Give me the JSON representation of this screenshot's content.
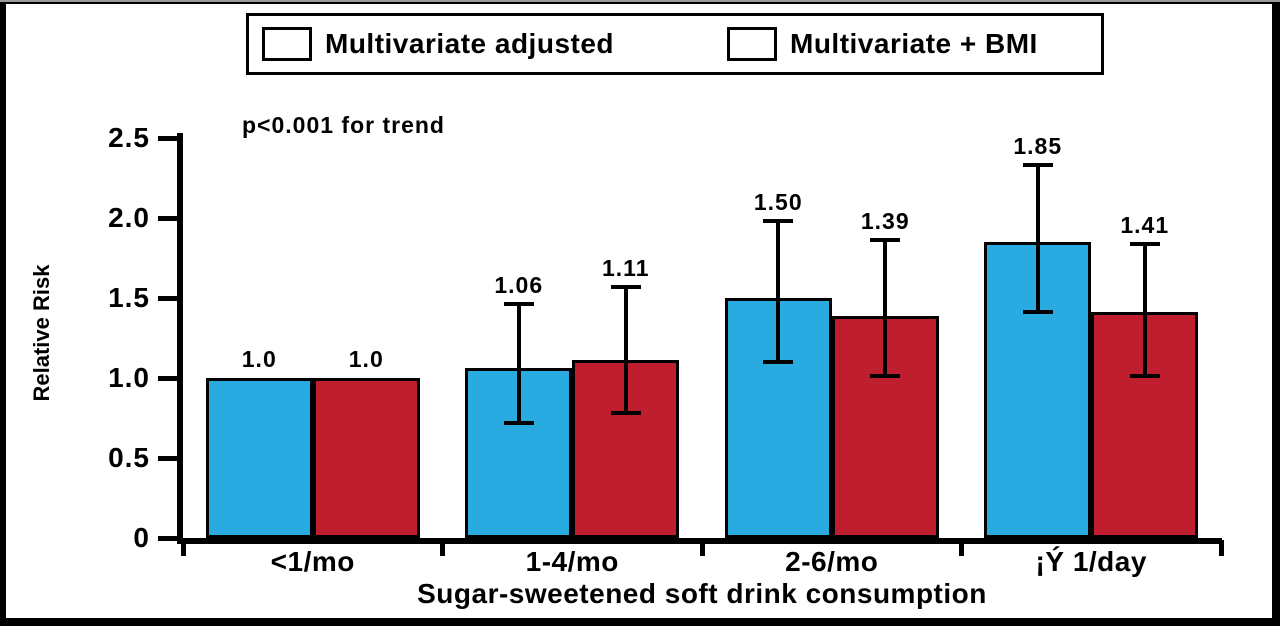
{
  "chart_data": {
    "type": "bar",
    "title": "",
    "xlabel": "Sugar-sweetened soft drink consumption",
    "ylabel": "Relative Risk",
    "annotation": "p<0.001 for trend",
    "categories": [
      "<1/mo",
      "1-4/mo",
      "2-6/mo",
      "¡Ý 1/day"
    ],
    "ylim": [
      0,
      2.5
    ],
    "yticks": [
      0,
      0.5,
      1.0,
      1.5,
      2.0,
      2.5
    ],
    "ytick_labels": [
      "0",
      "0.5",
      "1.0",
      "1.5",
      "2.0",
      "2.5"
    ],
    "grid": false,
    "legend_position": "top",
    "series": [
      {
        "name": "Multivariate adjusted",
        "color": "#29ABE2",
        "values": [
          1.0,
          1.06,
          1.5,
          1.85
        ],
        "labels": [
          "1.0",
          "1.06",
          "1.50",
          "1.85"
        ],
        "error_low": [
          null,
          0.72,
          1.1,
          1.41
        ],
        "error_high": [
          null,
          1.46,
          1.98,
          2.33
        ]
      },
      {
        "name": "Multivariate + BMI",
        "color": "#BE1E2D",
        "values": [
          1.0,
          1.11,
          1.39,
          1.41
        ],
        "labels": [
          "1.0",
          "1.11",
          "1.39",
          "1.41"
        ],
        "error_low": [
          null,
          0.78,
          1.01,
          1.01
        ],
        "error_high": [
          null,
          1.57,
          1.86,
          1.84
        ]
      }
    ],
    "colors": {
      "bar_border": "#000000",
      "axis": "#000000",
      "background": "#ffffff"
    }
  }
}
